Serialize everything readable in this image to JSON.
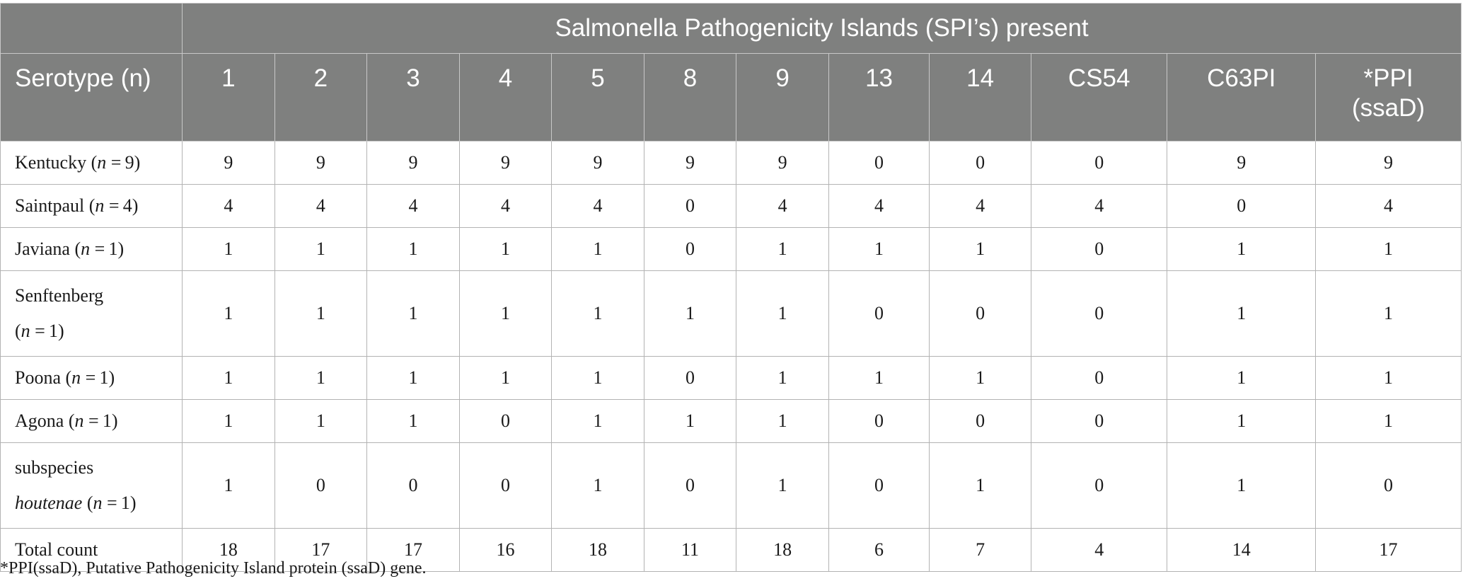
{
  "table": {
    "group_header": "Salmonella Pathogenicity Islands (SPI’s) present",
    "row_header": "Serotype (n)",
    "columns": [
      "1",
      "2",
      "3",
      "4",
      "5",
      "8",
      "9",
      "13",
      "14",
      "CS54",
      "C63PI",
      "*PPI",
      "(ssaD)"
    ],
    "rows": [
      {
        "name": "Kentucky (",
        "n_label": "n",
        "n_value": " = 9)",
        "values": [
          "9",
          "9",
          "9",
          "9",
          "9",
          "9",
          "9",
          "0",
          "0",
          "0",
          "9",
          "9"
        ]
      },
      {
        "name": "Saintpaul (",
        "n_label": "n",
        "n_value": " = 4)",
        "values": [
          "4",
          "4",
          "4",
          "4",
          "4",
          "0",
          "4",
          "4",
          "4",
          "4",
          "0",
          "4"
        ]
      },
      {
        "name": "Javiana (",
        "n_label": "n",
        "n_value": " = 1)",
        "values": [
          "1",
          "1",
          "1",
          "1",
          "1",
          "0",
          "1",
          "1",
          "1",
          "0",
          "1",
          "1"
        ]
      },
      {
        "name": "Senftenberg",
        "n_label": "n",
        "n_value": " = 1)",
        "values": [
          "1",
          "1",
          "1",
          "1",
          "1",
          "1",
          "1",
          "0",
          "0",
          "0",
          "1",
          "1"
        ]
      },
      {
        "name": "Poona (",
        "n_label": "n",
        "n_value": " = 1)",
        "values": [
          "1",
          "1",
          "1",
          "1",
          "1",
          "0",
          "1",
          "1",
          "1",
          "0",
          "1",
          "1"
        ]
      },
      {
        "name": "Agona (",
        "n_label": "n",
        "n_value": " = 1)",
        "values": [
          "1",
          "1",
          "1",
          "0",
          "1",
          "1",
          "1",
          "0",
          "0",
          "0",
          "1",
          "1"
        ]
      },
      {
        "name": "subspecies",
        "name_italic": "houtenae",
        "n_label": "n",
        "n_value": " = 1)",
        "values": [
          "1",
          "0",
          "0",
          "0",
          "1",
          "0",
          "1",
          "0",
          "1",
          "0",
          "1",
          "0"
        ]
      }
    ],
    "total": {
      "label": "Total count",
      "values": [
        "18",
        "17",
        "17",
        "16",
        "18",
        "11",
        "18",
        "6",
        "7",
        "4",
        "14",
        "17"
      ]
    }
  },
  "footnote": "*PPI(ssaD), Putative Pathogenicity Island protein (ssaD) gene."
}
